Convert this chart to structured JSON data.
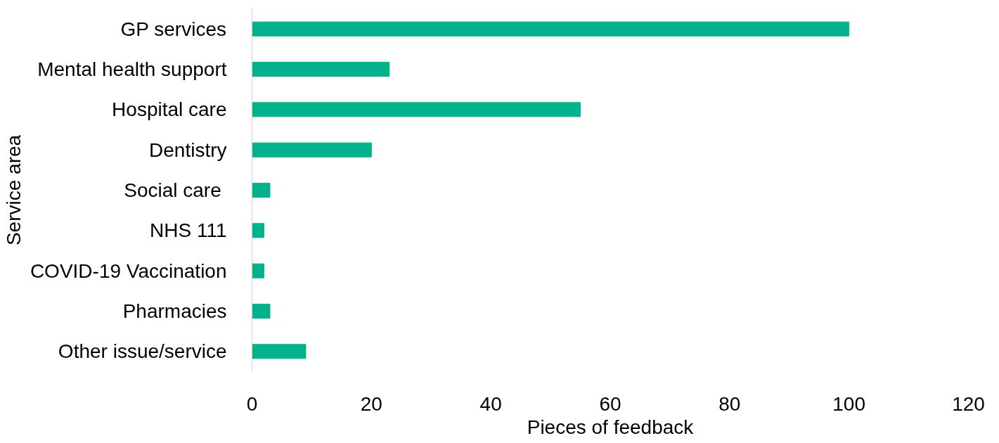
{
  "chart_data": {
    "type": "bar",
    "orientation": "horizontal",
    "xlabel": "Pieces of feedback",
    "ylabel": "Service area",
    "categories": [
      "GP services",
      "Mental health support",
      "Hospital care",
      "Dentistry",
      "Social care ",
      "NHS 111",
      "COVID-19 Vaccination",
      "Pharmacies",
      "Other issue/service"
    ],
    "values": [
      100,
      23,
      55,
      20,
      3,
      2,
      2,
      3,
      9
    ],
    "color": "#00b38a",
    "xlim": [
      0,
      120
    ],
    "xticks": [
      0,
      20,
      40,
      60,
      80,
      100,
      120
    ],
    "grid": false
  }
}
